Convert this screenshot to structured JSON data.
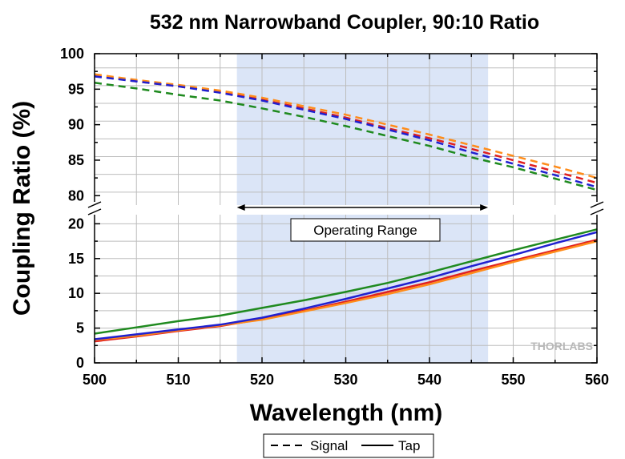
{
  "chart_data": {
    "type": "line",
    "title": "532 nm Narrowband Coupler, 90:10 Ratio",
    "xlabel": "Wavelength (nm)",
    "ylabel": "Coupling Ratio (%)",
    "xlim": [
      500,
      560
    ],
    "x_ticks": [
      "500",
      "510",
      "520",
      "530",
      "540",
      "550",
      "560"
    ],
    "y_break": true,
    "y_upper_ticks": [
      "80",
      "85",
      "90",
      "95",
      "100"
    ],
    "y_lower_ticks": [
      "0",
      "5",
      "10",
      "15",
      "20"
    ],
    "y_upper_range": [
      78,
      100
    ],
    "y_lower_range": [
      0,
      22
    ],
    "grid": true,
    "shaded_region": {
      "x_start": 517,
      "x_end": 547,
      "color": "#dbe5f7"
    },
    "annotation": {
      "text": "Operating Range",
      "x_start": 517,
      "x_end": 547
    },
    "x": [
      500,
      505,
      510,
      515,
      520,
      525,
      530,
      535,
      540,
      545,
      550,
      555,
      560
    ],
    "series": [
      {
        "style": "signal",
        "color": "#e02020",
        "values": [
          96.9,
          96.1,
          95.4,
          94.6,
          93.5,
          92.3,
          91.0,
          89.5,
          88.1,
          86.6,
          85.0,
          83.4,
          81.8
        ]
      },
      {
        "style": "signal",
        "color": "#ff8c1a",
        "values": [
          97.1,
          96.3,
          95.6,
          94.8,
          93.8,
          92.6,
          91.4,
          90.0,
          88.6,
          87.1,
          85.6,
          84.1,
          82.5
        ]
      },
      {
        "style": "signal",
        "color": "#2020d0",
        "values": [
          96.8,
          96.1,
          95.4,
          94.5,
          93.4,
          92.1,
          90.8,
          89.3,
          87.8,
          86.1,
          84.5,
          82.9,
          81.2
        ]
      },
      {
        "style": "signal",
        "color": "#1f8a1f",
        "values": [
          95.9,
          95.1,
          94.2,
          93.4,
          92.3,
          91.1,
          89.8,
          88.4,
          87.0,
          85.4,
          84.0,
          82.4,
          80.8
        ]
      },
      {
        "style": "tap",
        "color": "#e02020",
        "values": [
          3.1,
          3.8,
          4.6,
          5.3,
          6.3,
          7.5,
          8.8,
          10.2,
          11.6,
          13.2,
          14.7,
          16.2,
          17.7
        ]
      },
      {
        "style": "tap",
        "color": "#ff8c1a",
        "values": [
          3.3,
          3.9,
          4.7,
          5.4,
          6.2,
          7.4,
          8.6,
          9.9,
          11.3,
          12.9,
          14.5,
          16.0,
          17.5
        ]
      },
      {
        "style": "tap",
        "color": "#2020d0",
        "values": [
          3.4,
          4.1,
          4.8,
          5.5,
          6.5,
          7.8,
          9.2,
          10.7,
          12.2,
          13.9,
          15.5,
          17.2,
          18.8
        ]
      },
      {
        "style": "tap",
        "color": "#1f8a1f",
        "values": [
          4.2,
          5.1,
          6.0,
          6.8,
          7.9,
          9.0,
          10.2,
          11.5,
          13.0,
          14.6,
          16.2,
          17.7,
          19.2
        ]
      }
    ],
    "legend": {
      "position": "bottom-center",
      "entries": [
        {
          "label": "Signal",
          "dash": true
        },
        {
          "label": "Tap",
          "dash": false
        }
      ]
    },
    "watermark": "THORLABS"
  }
}
